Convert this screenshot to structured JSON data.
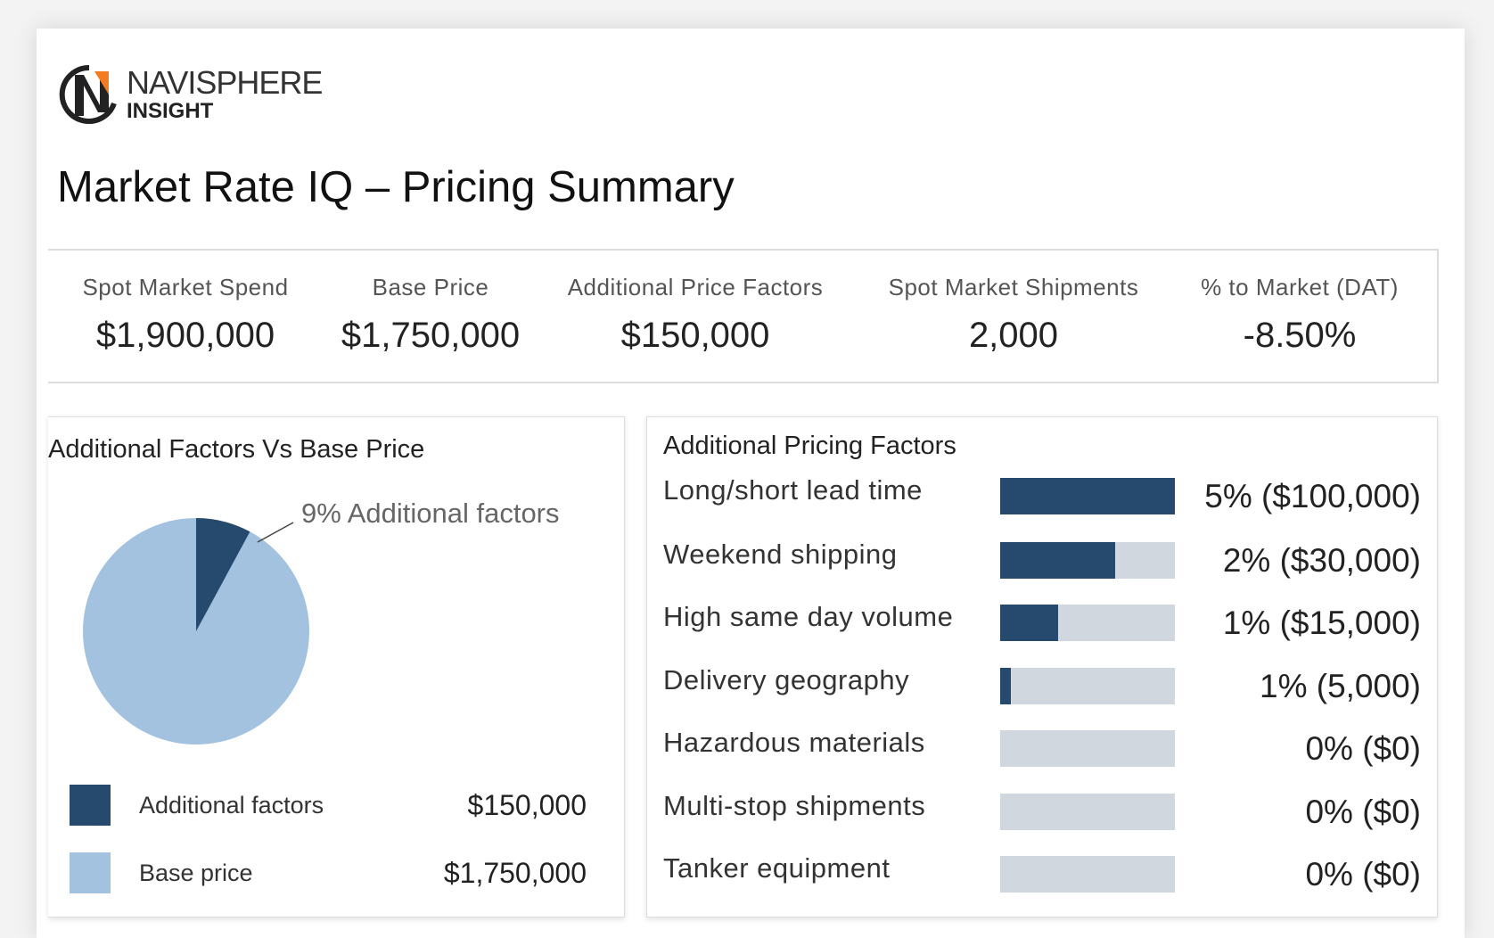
{
  "logo": {
    "name": "NAVISPHERE",
    "sub": "INSIGHT",
    "colors": {
      "orange": "#f47b20",
      "dark": "#222222"
    }
  },
  "page_title": "Market Rate IQ – Pricing Summary",
  "stats": [
    {
      "label": "Spot Market Spend",
      "value": "$1,900,000"
    },
    {
      "label": "Base Price",
      "value": "$1,750,000"
    },
    {
      "label": "Additional Price Factors",
      "value": "$150,000"
    },
    {
      "label": "Spot Market Shipments",
      "value": "2,000"
    },
    {
      "label": "% to Market (DAT)",
      "value": "-8.50%"
    }
  ],
  "pie_panel": {
    "title": "Additional Factors Vs Base Price",
    "callout": "9% Additional factors",
    "legend": [
      {
        "label": "Additional factors",
        "value": "$150,000",
        "color": "#264a6e"
      },
      {
        "label": "Base price",
        "value": "$1,750,000",
        "color": "#a3c2e0"
      }
    ]
  },
  "chart_data": {
    "type": "pie",
    "categories": [
      "Additional factors",
      "Base price"
    ],
    "values": [
      150000,
      1750000
    ],
    "colors": [
      "#264a6e",
      "#a3c2e0"
    ]
  },
  "factors_panel": {
    "title": "Additional Pricing Factors",
    "bar_color": "#264a6e",
    "track_color": "#d0d7de",
    "items": [
      {
        "label": "Long/short lead time",
        "value": "5% ($100,000)",
        "fill": 1.0
      },
      {
        "label": "Weekend shipping",
        "value": "2% ($30,000)",
        "fill": 0.66
      },
      {
        "label": "High same day volume",
        "value": "1% ($15,000)",
        "fill": 0.33
      },
      {
        "label": "Delivery geography",
        "value": "1% (5,000)",
        "fill": 0.06
      },
      {
        "label": "Hazardous materials",
        "value": "0% ($0)",
        "fill": 0
      },
      {
        "label": "Multi-stop shipments",
        "value": "0% ($0)",
        "fill": 0
      },
      {
        "label": "Tanker equipment",
        "value": "0% ($0)",
        "fill": 0
      }
    ]
  }
}
